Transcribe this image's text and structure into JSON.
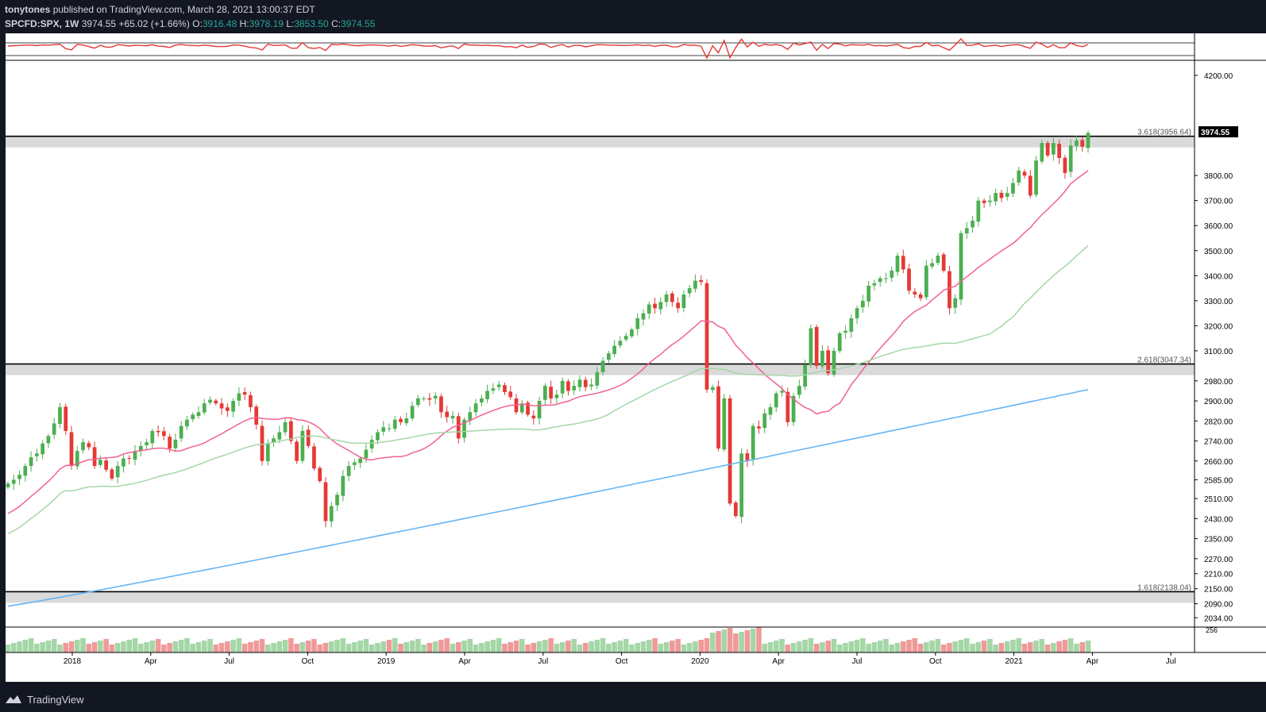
{
  "header": {
    "author": "tonytones",
    "published": "published on TradingView.com, March 28, 2021 13:00:37 EDT",
    "symbol": "SPCFD:SPX, 1W",
    "last": "3974.55",
    "change": "+65.02 (+1.66%)",
    "o_label": "O:",
    "o_value": "3916.48",
    "h_label": "H:",
    "h_value": "3978.19",
    "l_label": "L:",
    "l_value": "3853.50",
    "c_label": "C:",
    "c_value": "3974.55"
  },
  "footer": {
    "brand": "TradingView"
  },
  "colors": {
    "background": "#ffffff",
    "page": "#131722",
    "up": "#4caf50",
    "down": "#e53935",
    "ma20": "#f06292",
    "ma50": "#a5d6a7",
    "ma200": "#64b5f6",
    "osc": "#e53935",
    "volume_up": "#a5d6a7",
    "volume_down": "#ef9a9a",
    "fib_zone": "#d6d6d6",
    "level_line": "#000000"
  },
  "chart_data": {
    "type": "candlestick",
    "symbol": "SPCFD:SPX",
    "timeframe": "1W",
    "ylim": [
      2000,
      4260
    ],
    "x_tick_labels": [
      "2018",
      "Apr",
      "Jul",
      "Oct",
      "2019",
      "Apr",
      "Jul",
      "Oct",
      "2020",
      "Apr",
      "Jul",
      "Oct",
      "2021",
      "Apr",
      "Jul"
    ],
    "y_tick_labels": [
      "4200.00",
      "3800.00",
      "3700.00",
      "3600.00",
      "3500.00",
      "3400.00",
      "3300.00",
      "3200.00",
      "3100.00",
      "2980.00",
      "2900.00",
      "2820.00",
      "2740.00",
      "2660.00",
      "2585.00",
      "2510.00",
      "2430.00",
      "2350.00",
      "2270.00",
      "2210.00",
      "2150.00",
      "2090.00",
      "2034.00"
    ],
    "y_tick_values": [
      4200,
      3800,
      3700,
      3600,
      3500,
      3400,
      3300,
      3200,
      3100,
      2980,
      2900,
      2820,
      2740,
      2660,
      2585,
      2510,
      2430,
      2350,
      2270,
      2210,
      2150,
      2090,
      2034
    ],
    "last_price": "3974.55",
    "fib_levels": [
      {
        "label": "3.618(3956.64)",
        "value": 3956.64
      },
      {
        "label": "2.618(3047.34)",
        "value": 3047.34
      },
      {
        "label": "1.618(2138.04)",
        "value": 2138.04
      }
    ],
    "closes": [
      2570,
      2585,
      2605,
      2640,
      2675,
      2690,
      2730,
      2760,
      2810,
      2875,
      2780,
      2640,
      2700,
      2735,
      2715,
      2640,
      2665,
      2625,
      2590,
      2640,
      2670,
      2670,
      2700,
      2720,
      2735,
      2780,
      2775,
      2760,
      2710,
      2745,
      2800,
      2825,
      2845,
      2855,
      2890,
      2905,
      2890,
      2870,
      2860,
      2900,
      2930,
      2925,
      2875,
      2805,
      2660,
      2730,
      2750,
      2775,
      2815,
      2740,
      2660,
      2780,
      2720,
      2630,
      2580,
      2420,
      2480,
      2525,
      2600,
      2640,
      2655,
      2670,
      2705,
      2745,
      2775,
      2795,
      2790,
      2825,
      2815,
      2830,
      2880,
      2910,
      2910,
      2905,
      2920,
      2855,
      2835,
      2840,
      2750,
      2825,
      2855,
      2890,
      2910,
      2940,
      2950,
      2965,
      2935,
      2915,
      2855,
      2890,
      2845,
      2830,
      2900,
      2960,
      2910,
      2925,
      2980,
      2940,
      2960,
      2985,
      2955,
      2965,
      3015,
      3060,
      3090,
      3120,
      3140,
      3160,
      3185,
      3230,
      3250,
      3285,
      3270,
      3295,
      3325,
      3295,
      3270,
      3325,
      3350,
      3380,
      3375,
      2945,
      2955,
      2710,
      2910,
      2490,
      2440,
      2690,
      2660,
      2800,
      2790,
      2850,
      2875,
      2930,
      2940,
      2815,
      2920,
      2960,
      3045,
      3190,
      3040,
      3100,
      3010,
      3100,
      3170,
      3180,
      3230,
      3270,
      3300,
      3360,
      3370,
      3390,
      3390,
      3420,
      3480,
      3425,
      3340,
      3325,
      3310,
      3440,
      3450,
      3480,
      3420,
      3270,
      3310,
      3570,
      3590,
      3620,
      3700,
      3690,
      3700,
      3730,
      3710,
      3730,
      3770,
      3820,
      3800,
      3720,
      3860,
      3930,
      3880,
      3930,
      3870,
      3810,
      3920,
      3940,
      3915,
      3970
    ],
    "ma20_end": 3760,
    "ma50_end": 3440,
    "ma200_end": 2945
  }
}
